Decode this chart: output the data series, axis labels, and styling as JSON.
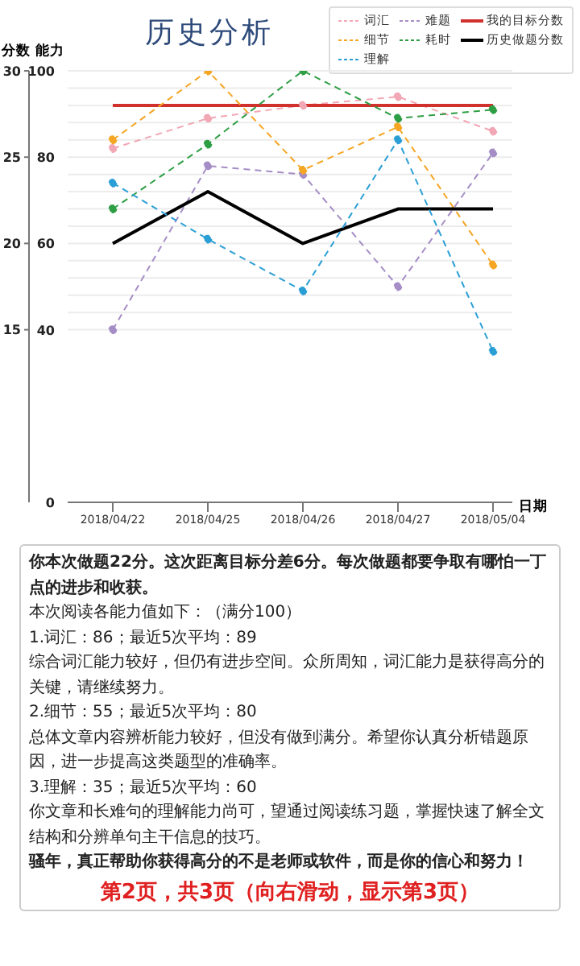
{
  "chart_data": {
    "type": "line",
    "title": "历史分析",
    "xlabel": "日期",
    "ylabel": "能力",
    "y2label": "分数",
    "categories": [
      "2018/04/22",
      "2018/04/25",
      "2018/04/26",
      "2018/04/27",
      "2018/05/04"
    ],
    "series": [
      {
        "name": "词汇",
        "color": "#f2a7b5",
        "values": [
          82,
          89,
          92,
          94,
          86
        ],
        "line_style": "dashed"
      },
      {
        "name": "难题",
        "color": "#a58dc6",
        "values": [
          40,
          78,
          76,
          50,
          81
        ],
        "line_style": "dashed"
      },
      {
        "name": "我的目标分数",
        "color": "#d0312d",
        "values": [
          28,
          28,
          28,
          28,
          28
        ],
        "axis": "y2",
        "line_style": "solid",
        "marker": "none"
      },
      {
        "name": "细节",
        "color": "#f5a623",
        "values": [
          84,
          100,
          77,
          87,
          55
        ],
        "line_style": "dashed"
      },
      {
        "name": "耗时",
        "color": "#2e9e44",
        "values": [
          68,
          83,
          100,
          89,
          91
        ],
        "line_style": "dashed"
      },
      {
        "name": "历史做题分数",
        "color": "#000000",
        "values": [
          20,
          23,
          20,
          22,
          22
        ],
        "axis": "y2",
        "line_style": "solid",
        "marker": "none"
      },
      {
        "name": "理解",
        "color": "#2a9fd6",
        "values": [
          74,
          61,
          49,
          84,
          35
        ],
        "line_style": "dashed"
      }
    ],
    "ylim": [
      0,
      100
    ],
    "yticks": [
      0,
      40,
      {
        "value": 44,
        "label": null
      },
      {
        "value": 48,
        "label": null
      },
      {
        "value": 52,
        "label": null
      },
      {
        "value": 56,
        "label": null
      },
      60,
      {
        "value": 64,
        "label": null
      },
      {
        "value": 68,
        "label": null
      },
      {
        "value": 72,
        "label": null
      },
      {
        "value": 76,
        "label": null
      },
      80,
      {
        "value": 84,
        "label": null
      },
      {
        "value": 88,
        "label": null
      },
      {
        "value": 92,
        "label": null
      },
      {
        "value": 96,
        "label": null
      },
      100
    ],
    "y2lim": [
      5,
      30
    ],
    "y2ticks": [
      15,
      20,
      25,
      30
    ],
    "grid": "y",
    "legend": "top right",
    "marker": "circle",
    "annotations": [
      "你本次做题22分。这次距离目标分差6分。每次做题都要争取有哪怕一丁点的进步和收获。",
      "本次阅读各能力值如下：（满分100）",
      "1.词汇：86；最近5次平均：89",
      "综合词汇能力较好，但仍有进步空间。众所周知，词汇能力是获得高分的关键，请继续努力。",
      "2.细节：55；最近5次平均：80",
      "总体文章内容辨析能力较好，但没有做到满分。希望你认真分析错题原因，进一步提高这类题型的准确率。",
      "3.理解：35；最近5次平均：60",
      "你文章和长难句的理解能力尚可，望通过阅读练习题，掌握快速了解全文结构和分辨单句主干信息的技巧。",
      "骚年，真正帮助你获得高分的不是老师或软件，而是你的信心和努力！",
      "第2页，共3页（向右滑动，显示第3页）"
    ]
  }
}
